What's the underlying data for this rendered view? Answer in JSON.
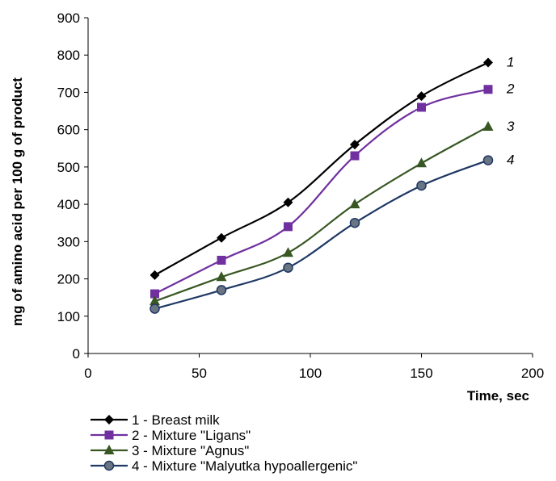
{
  "chart_data": {
    "type": "line",
    "title": "",
    "xlabel": "Time, sec",
    "ylabel": "mg of amino acid per 100 g of product",
    "xlim": [
      0,
      200
    ],
    "ylim": [
      0,
      900
    ],
    "xticks": [
      0,
      50,
      100,
      150,
      200
    ],
    "yticks": [
      0,
      100,
      200,
      300,
      400,
      500,
      600,
      700,
      800,
      900
    ],
    "grid": false,
    "legend_position": "bottom-left",
    "x": [
      30,
      60,
      90,
      120,
      150,
      180
    ],
    "series": [
      {
        "name": "1 - Breast milk",
        "end_label": "1",
        "color": "#000000",
        "marker": "diamond",
        "values": [
          210,
          310,
          405,
          560,
          690,
          780
        ]
      },
      {
        "name": "2 - Mixture \"Ligans\"",
        "end_label": "2",
        "color": "#7030A0",
        "marker": "square",
        "values": [
          160,
          250,
          340,
          530,
          660,
          708
        ]
      },
      {
        "name": "3 - Mixture \"Agnus\"",
        "end_label": "3",
        "color": "#385723",
        "marker": "triangle",
        "values": [
          140,
          205,
          270,
          400,
          510,
          608
        ]
      },
      {
        "name": "4 - Mixture \"Malyutka hypoallergenic\"",
        "end_label": "4",
        "color": "#1F3864",
        "marker": "circle",
        "values": [
          120,
          170,
          230,
          350,
          450,
          518
        ]
      }
    ]
  }
}
